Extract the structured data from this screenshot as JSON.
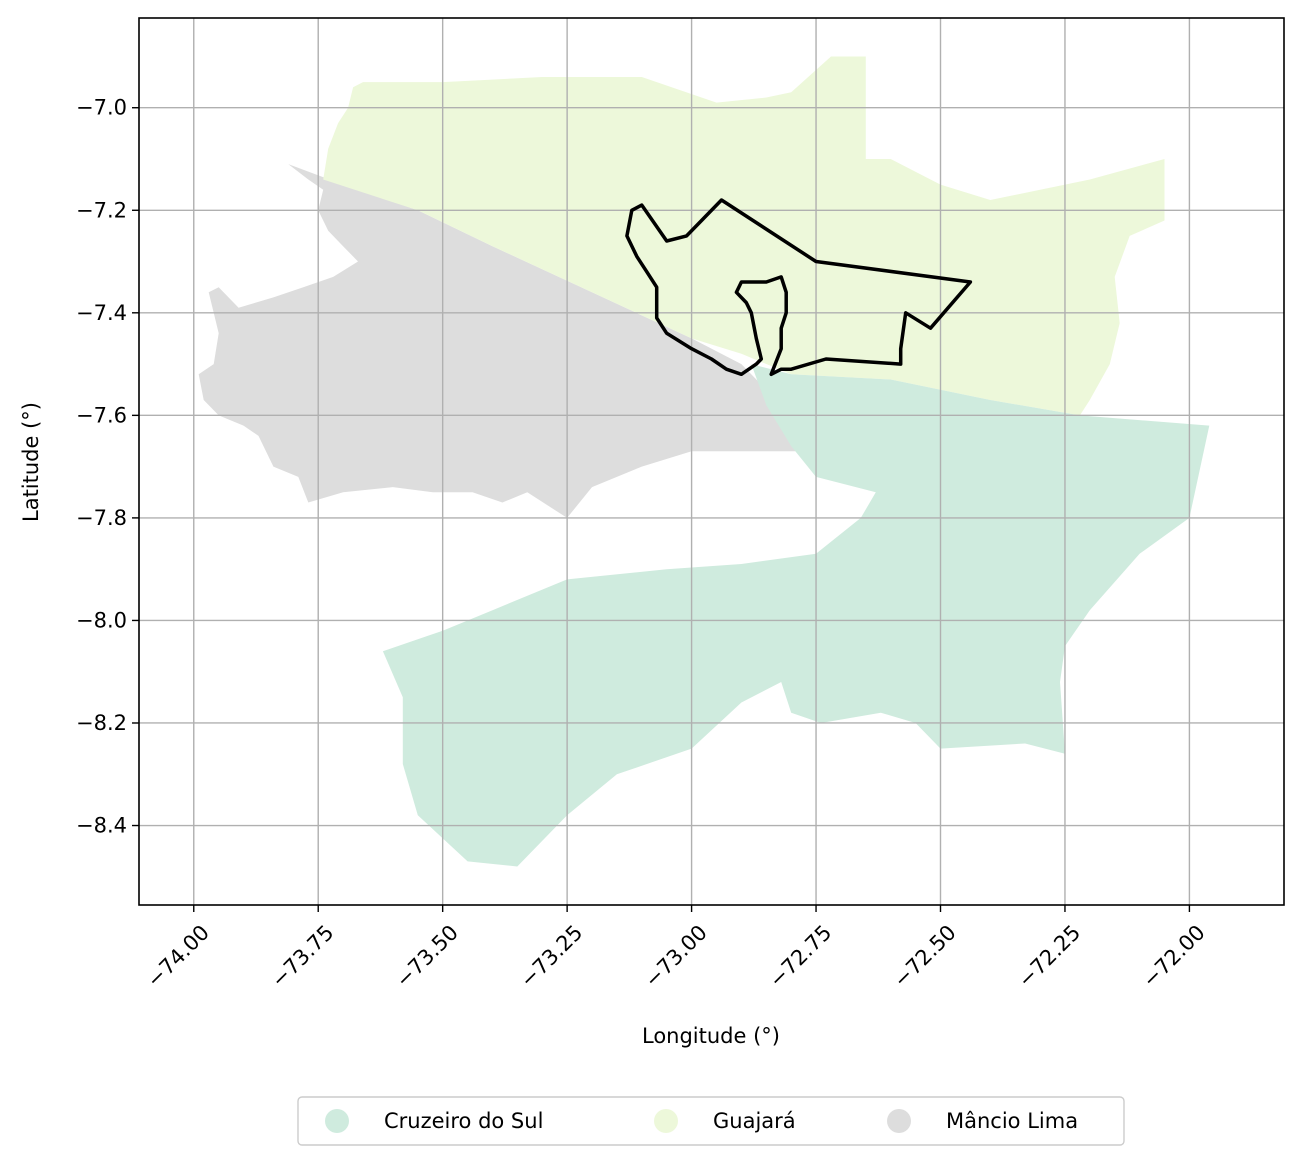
{
  "chart_data": {
    "type": "map",
    "xlabel": "Longitude (°)",
    "ylabel": "Latitude (°)",
    "xlim": [
      -74.11,
      -71.81
    ],
    "ylim": [
      -8.555,
      -6.825
    ],
    "xticks": [
      -74.0,
      -73.75,
      -73.5,
      -73.25,
      -73.0,
      -72.75,
      -72.5,
      -72.25,
      -72.0
    ],
    "xtick_labels": [
      "−74.00",
      "−73.75",
      "−73.50",
      "−73.25",
      "−73.00",
      "−72.75",
      "−72.50",
      "−72.25",
      "−72.00"
    ],
    "yticks": [
      -7.0,
      -7.2,
      -7.4,
      -7.6,
      -7.8,
      -8.0,
      -8.2,
      -8.4
    ],
    "ytick_labels": [
      "−7.0",
      "−7.2",
      "−7.4",
      "−7.6",
      "−7.8",
      "−8.0",
      "−8.2",
      "−8.4"
    ],
    "grid": true,
    "legend_position": "bottom-center",
    "regions": [
      {
        "name": "Mâncio Lima",
        "color": "#dddddd",
        "polygon": [
          [
            -73.81,
            -7.11
          ],
          [
            -73.77,
            -7.14
          ],
          [
            -73.74,
            -7.16
          ],
          [
            -73.75,
            -7.2
          ],
          [
            -73.73,
            -7.24
          ],
          [
            -73.7,
            -7.27
          ],
          [
            -73.67,
            -7.3
          ],
          [
            -73.72,
            -7.33
          ],
          [
            -73.78,
            -7.35
          ],
          [
            -73.84,
            -7.37
          ],
          [
            -73.91,
            -7.39
          ],
          [
            -73.95,
            -7.35
          ],
          [
            -73.97,
            -7.36
          ],
          [
            -73.95,
            -7.44
          ],
          [
            -73.96,
            -7.5
          ],
          [
            -73.99,
            -7.52
          ],
          [
            -73.98,
            -7.57
          ],
          [
            -73.95,
            -7.6
          ],
          [
            -73.9,
            -7.62
          ],
          [
            -73.87,
            -7.64
          ],
          [
            -73.84,
            -7.7
          ],
          [
            -73.79,
            -7.72
          ],
          [
            -73.77,
            -7.77
          ],
          [
            -73.7,
            -7.75
          ],
          [
            -73.6,
            -7.74
          ],
          [
            -73.52,
            -7.75
          ],
          [
            -73.44,
            -7.75
          ],
          [
            -73.38,
            -7.77
          ],
          [
            -73.33,
            -7.75
          ],
          [
            -73.25,
            -7.8
          ],
          [
            -73.2,
            -7.74
          ],
          [
            -73.1,
            -7.7
          ],
          [
            -73.0,
            -7.67
          ],
          [
            -72.9,
            -7.67
          ],
          [
            -72.77,
            -7.67
          ],
          [
            -72.8,
            -7.6
          ],
          [
            -72.9,
            -7.5
          ],
          [
            -73.0,
            -7.45
          ],
          [
            -73.2,
            -7.36
          ],
          [
            -73.4,
            -7.27
          ],
          [
            -73.55,
            -7.2
          ],
          [
            -73.7,
            -7.15
          ]
        ]
      },
      {
        "name": "Guajará",
        "color": "#edf8da",
        "polygon": [
          [
            -73.74,
            -7.14
          ],
          [
            -73.73,
            -7.08
          ],
          [
            -73.71,
            -7.03
          ],
          [
            -73.69,
            -7.0
          ],
          [
            -73.68,
            -6.96
          ],
          [
            -73.66,
            -6.95
          ],
          [
            -73.5,
            -6.95
          ],
          [
            -73.3,
            -6.94
          ],
          [
            -73.1,
            -6.94
          ],
          [
            -72.95,
            -6.99
          ],
          [
            -72.85,
            -6.98
          ],
          [
            -72.8,
            -6.97
          ],
          [
            -72.72,
            -6.9
          ],
          [
            -72.65,
            -6.9
          ],
          [
            -72.65,
            -7.1
          ],
          [
            -72.6,
            -7.1
          ],
          [
            -72.5,
            -7.15
          ],
          [
            -72.4,
            -7.18
          ],
          [
            -72.2,
            -7.14
          ],
          [
            -72.05,
            -7.1
          ],
          [
            -72.05,
            -7.22
          ],
          [
            -72.12,
            -7.25
          ],
          [
            -72.15,
            -7.33
          ],
          [
            -72.14,
            -7.42
          ],
          [
            -72.16,
            -7.5
          ],
          [
            -72.2,
            -7.57
          ],
          [
            -72.22,
            -7.6
          ],
          [
            -72.4,
            -7.57
          ],
          [
            -72.6,
            -7.53
          ],
          [
            -72.8,
            -7.52
          ],
          [
            -72.9,
            -7.48
          ],
          [
            -73.0,
            -7.45
          ],
          [
            -73.2,
            -7.36
          ],
          [
            -73.4,
            -7.27
          ],
          [
            -73.55,
            -7.2
          ]
        ]
      },
      {
        "name": "Cruzeiro do Sul",
        "color": "#cfebde",
        "polygon": [
          [
            -72.88,
            -7.5
          ],
          [
            -72.8,
            -7.52
          ],
          [
            -72.6,
            -7.53
          ],
          [
            -72.4,
            -7.57
          ],
          [
            -72.22,
            -7.6
          ],
          [
            -71.96,
            -7.62
          ],
          [
            -72.0,
            -7.8
          ],
          [
            -72.1,
            -7.87
          ],
          [
            -72.2,
            -7.98
          ],
          [
            -72.25,
            -8.05
          ],
          [
            -72.26,
            -8.12
          ],
          [
            -72.25,
            -8.26
          ],
          [
            -72.33,
            -8.24
          ],
          [
            -72.5,
            -8.25
          ],
          [
            -72.55,
            -8.2
          ],
          [
            -72.62,
            -8.18
          ],
          [
            -72.74,
            -8.2
          ],
          [
            -72.8,
            -8.18
          ],
          [
            -72.82,
            -8.12
          ],
          [
            -72.9,
            -8.16
          ],
          [
            -73.0,
            -8.25
          ],
          [
            -73.15,
            -8.3
          ],
          [
            -73.25,
            -8.38
          ],
          [
            -73.35,
            -8.48
          ],
          [
            -73.45,
            -8.47
          ],
          [
            -73.55,
            -8.38
          ],
          [
            -73.58,
            -8.28
          ],
          [
            -73.58,
            -8.15
          ],
          [
            -73.62,
            -8.06
          ],
          [
            -73.5,
            -8.02
          ],
          [
            -73.4,
            -7.98
          ],
          [
            -73.25,
            -7.92
          ],
          [
            -73.05,
            -7.9
          ],
          [
            -72.9,
            -7.89
          ],
          [
            -72.75,
            -7.87
          ],
          [
            -72.66,
            -7.8
          ],
          [
            -72.63,
            -7.75
          ],
          [
            -72.75,
            -7.72
          ],
          [
            -72.8,
            -7.66
          ],
          [
            -72.85,
            -7.58
          ]
        ]
      }
    ],
    "outline": {
      "color": "#000000",
      "polygon": [
        [
          -72.94,
          -7.18
        ],
        [
          -72.75,
          -7.3
        ],
        [
          -72.44,
          -7.34
        ],
        [
          -72.52,
          -7.43
        ],
        [
          -72.57,
          -7.4
        ],
        [
          -72.58,
          -7.47
        ],
        [
          -72.58,
          -7.5
        ],
        [
          -72.73,
          -7.49
        ],
        [
          -72.8,
          -7.51
        ],
        [
          -72.82,
          -7.51
        ],
        [
          -72.84,
          -7.52
        ],
        [
          -72.82,
          -7.47
        ],
        [
          -72.82,
          -7.43
        ],
        [
          -72.81,
          -7.4
        ],
        [
          -72.81,
          -7.36
        ],
        [
          -72.82,
          -7.33
        ],
        [
          -72.85,
          -7.34
        ],
        [
          -72.9,
          -7.34
        ],
        [
          -72.91,
          -7.36
        ],
        [
          -72.89,
          -7.38
        ],
        [
          -72.88,
          -7.4
        ],
        [
          -72.87,
          -7.45
        ],
        [
          -72.86,
          -7.49
        ],
        [
          -72.87,
          -7.5
        ],
        [
          -72.9,
          -7.52
        ],
        [
          -72.93,
          -7.51
        ],
        [
          -72.96,
          -7.49
        ],
        [
          -73.0,
          -7.47
        ],
        [
          -73.05,
          -7.44
        ],
        [
          -73.07,
          -7.41
        ],
        [
          -73.07,
          -7.35
        ],
        [
          -73.09,
          -7.32
        ],
        [
          -73.11,
          -7.29
        ],
        [
          -73.13,
          -7.25
        ],
        [
          -73.12,
          -7.2
        ],
        [
          -73.1,
          -7.19
        ],
        [
          -73.05,
          -7.26
        ],
        [
          -73.01,
          -7.25
        ]
      ]
    }
  },
  "legend": {
    "items": [
      {
        "label": "Cruzeiro do Sul",
        "color": "#cfebde"
      },
      {
        "label": "Guajará",
        "color": "#edf8da"
      },
      {
        "label": "Mâncio Lima",
        "color": "#dddddd"
      }
    ]
  }
}
